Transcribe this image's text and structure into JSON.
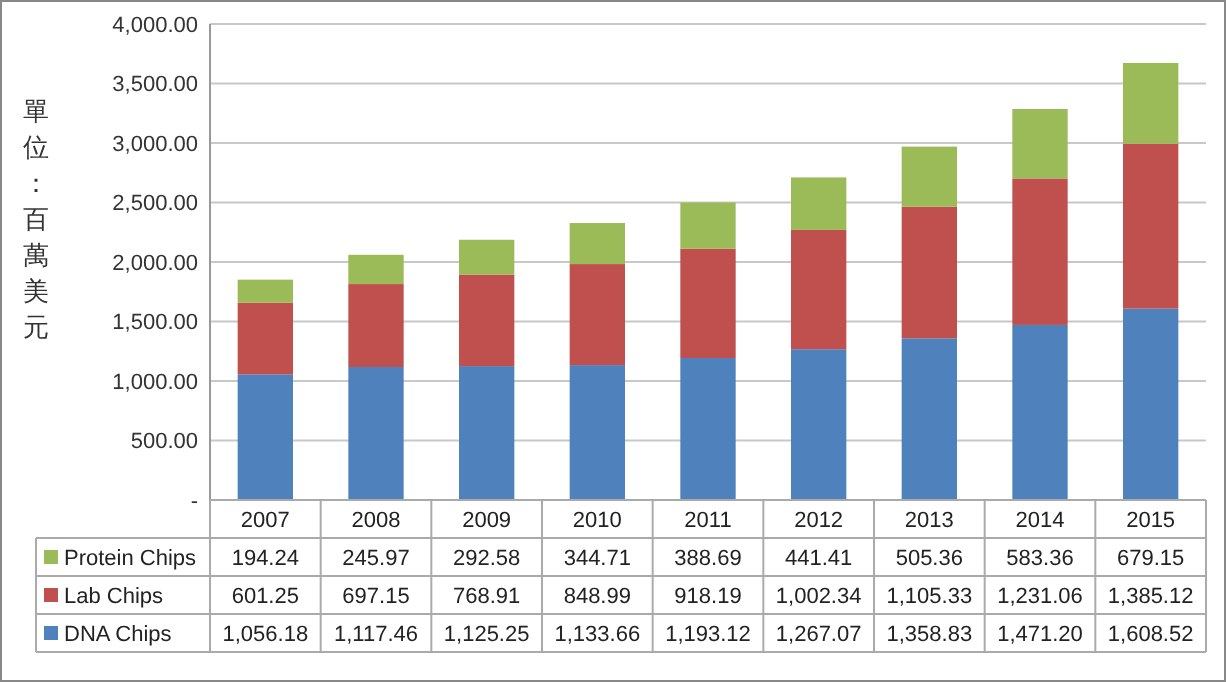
{
  "chart_data": {
    "type": "bar",
    "stacked": true,
    "ylabel": "單位：百萬美元",
    "categories": [
      "2007",
      "2008",
      "2009",
      "2010",
      "2011",
      "2012",
      "2013",
      "2014",
      "2015"
    ],
    "series": [
      {
        "name": "DNA Chips",
        "color": "#4f81bd",
        "values": [
          1056.18,
          1117.46,
          1125.25,
          1133.66,
          1193.12,
          1267.07,
          1358.83,
          1471.2,
          1608.52
        ],
        "value_labels": [
          "1,056.18",
          "1,117.46",
          "1,125.25",
          "1,133.66",
          "1,193.12",
          "1,267.07",
          "1,358.83",
          "1,471.20",
          "1,608.52"
        ]
      },
      {
        "name": "Lab Chips",
        "color": "#c0504d",
        "values": [
          601.25,
          697.15,
          768.91,
          848.99,
          918.19,
          1002.34,
          1105.33,
          1231.06,
          1385.12
        ],
        "value_labels": [
          "601.25",
          "697.15",
          "768.91",
          "848.99",
          "918.19",
          "1,002.34",
          "1,105.33",
          "1,231.06",
          "1,385.12"
        ]
      },
      {
        "name": "Protein Chips",
        "color": "#9bbb59",
        "values": [
          194.24,
          245.97,
          292.58,
          344.71,
          388.69,
          441.41,
          505.36,
          583.36,
          679.15
        ],
        "value_labels": [
          "194.24",
          "245.97",
          "292.58",
          "344.71",
          "388.69",
          "441.41",
          "505.36",
          "583.36",
          "679.15"
        ]
      }
    ],
    "ylim": [
      0,
      4000
    ],
    "yticks": [
      {
        "value": 0,
        "label": "-"
      },
      {
        "value": 500,
        "label": "500.00"
      },
      {
        "value": 1000,
        "label": "1,000.00"
      },
      {
        "value": 1500,
        "label": "1,500.00"
      },
      {
        "value": 2000,
        "label": "2,000.00"
      },
      {
        "value": 2500,
        "label": "2,500.00"
      },
      {
        "value": 3000,
        "label": "3,000.00"
      },
      {
        "value": 3500,
        "label": "3,500.00"
      },
      {
        "value": 4000,
        "label": "4,000.00"
      }
    ],
    "grid": "y",
    "legend": "bottom"
  }
}
